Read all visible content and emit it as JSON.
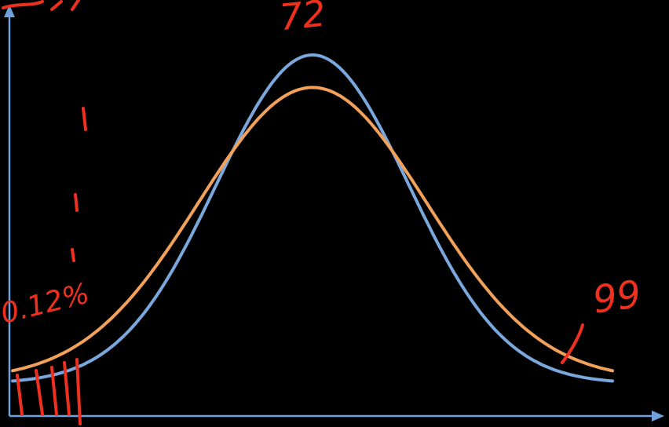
{
  "chart_data": {
    "type": "line",
    "title": "",
    "xlabel": "",
    "ylabel": "",
    "grid": false,
    "legend": "none",
    "background": "#000000",
    "axis_color": "#6fa1dc",
    "annotation_color": "#f0301e",
    "annotations": [
      "72",
      "0.12%",
      "99"
    ],
    "series": [
      {
        "color": "#7aa7dc",
        "mean": 50,
        "sd": 16,
        "peak": 1.0,
        "baseline": 0.09,
        "points": [
          [
            0,
            0.09
          ],
          [
            10,
            0.16
          ],
          [
            20,
            0.27
          ],
          [
            30,
            0.53
          ],
          [
            40,
            0.84
          ],
          [
            50,
            1.0
          ],
          [
            60,
            0.84
          ],
          [
            70,
            0.53
          ],
          [
            80,
            0.27
          ],
          [
            90,
            0.16
          ],
          [
            100,
            0.09
          ]
        ]
      },
      {
        "color": "#f2a15a",
        "mean": 50,
        "sd": 19,
        "peak": 0.91,
        "baseline": 0.1,
        "points": [
          [
            0,
            0.1
          ],
          [
            10,
            0.21
          ],
          [
            20,
            0.37
          ],
          [
            30,
            0.59
          ],
          [
            40,
            0.8
          ],
          [
            50,
            0.91
          ],
          [
            60,
            0.8
          ],
          [
            70,
            0.59
          ],
          [
            80,
            0.37
          ],
          [
            90,
            0.21
          ],
          [
            100,
            0.1
          ]
        ]
      }
    ],
    "xlim": [
      0,
      100
    ],
    "ylim": [
      0,
      1.15
    ]
  }
}
